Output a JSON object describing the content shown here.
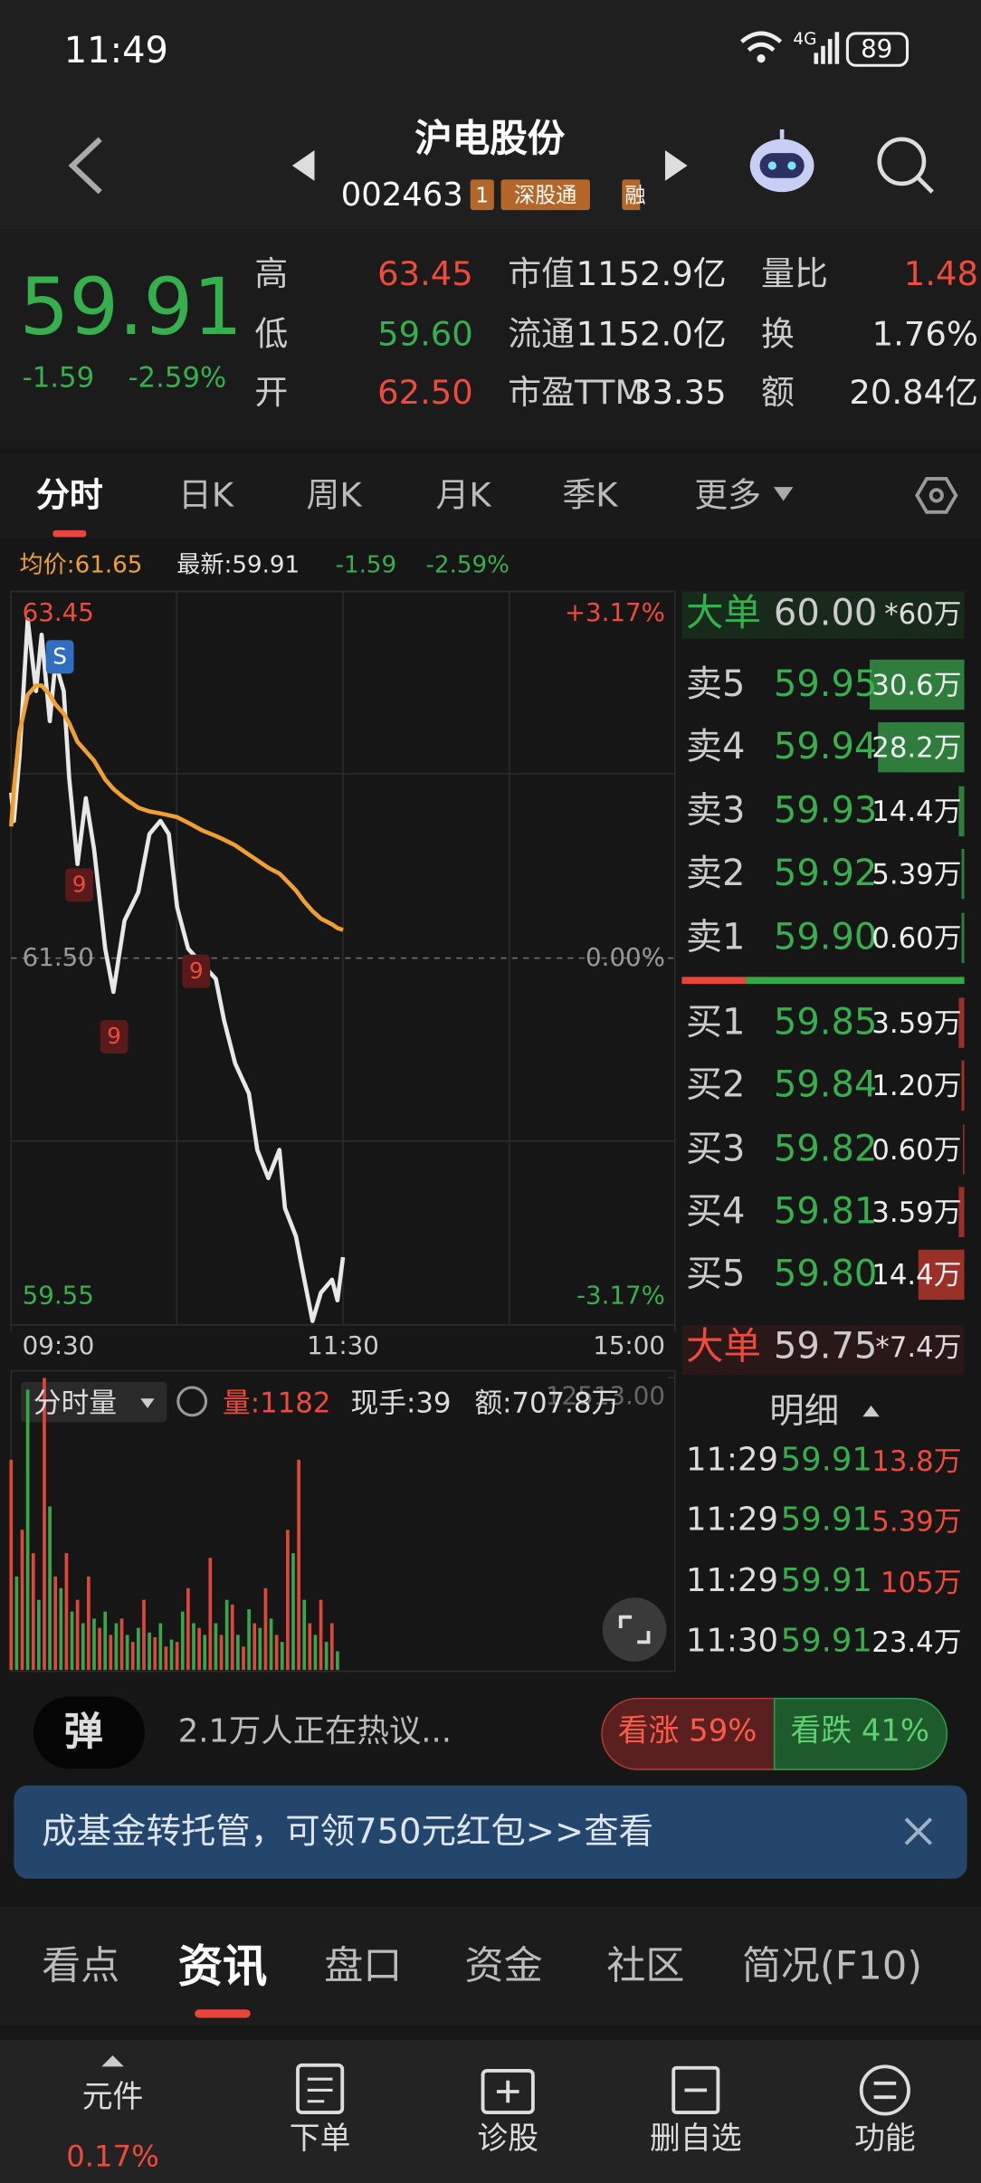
{
  "status_bar": {
    "time": "11:49",
    "network": "4G",
    "battery": "89"
  },
  "header": {
    "title": "沪电股份",
    "code": "002463",
    "badges": [
      "1",
      "深股通",
      "融"
    ]
  },
  "quote": {
    "price": "59.91",
    "change": "-1.59",
    "change_pct": "-2.59%",
    "stats": [
      [
        "高",
        "63.45"
      ],
      [
        "低",
        "59.60"
      ],
      [
        "开",
        "62.50"
      ],
      [
        "市值",
        "1152.9亿"
      ],
      [
        "流通",
        "1152.0亿"
      ],
      [
        "市盈TTM",
        "33.35"
      ],
      [
        "量比",
        "1.48"
      ],
      [
        "换",
        "1.76%"
      ],
      [
        "额",
        "20.84亿"
      ]
    ]
  },
  "chart_tabs": [
    "分时",
    "日K",
    "周K",
    "月K",
    "季K",
    "更多"
  ],
  "info_line": {
    "avg": "均价:61.65",
    "latest": "最新:59.91",
    "change": "-1.59",
    "change_pct": "-2.59%"
  },
  "chart_data": [
    {
      "type": "line",
      "xlim": [
        0,
        240
      ],
      "xticks": [
        {
          "value": 0,
          "label": "09:30"
        },
        {
          "value": 120,
          "label": "11:30"
        },
        {
          "value": 240,
          "label": "15:00"
        }
      ],
      "ylim": [
        59.55,
        63.45
      ],
      "yticks": [
        63.45,
        {
          "value": 61.5,
          "label": "61.50"
        },
        59.55
      ],
      "pct_labels": [
        "+3.17%",
        "0.00%",
        "-3.17%"
      ],
      "markers": [
        "S",
        "9",
        "9",
        "9"
      ],
      "x": [
        0,
        1,
        3,
        6,
        9,
        11,
        14,
        16,
        19,
        21,
        24,
        27,
        30,
        34,
        37,
        41,
        46,
        50,
        54,
        57,
        60,
        64,
        69,
        74,
        77,
        81,
        86,
        89,
        93,
        97,
        99,
        103,
        106,
        109,
        112,
        116,
        118,
        120
      ],
      "series": [
        {
          "color": "#e8e8e8",
          "values": [
            62.38,
            62.23,
            62.57,
            63.3,
            62.92,
            63.22,
            62.76,
            63.07,
            62.92,
            62.46,
            62.0,
            62.35,
            62.08,
            61.55,
            61.32,
            61.7,
            61.85,
            62.16,
            62.23,
            62.16,
            61.77,
            61.55,
            61.47,
            61.39,
            61.17,
            60.94,
            60.78,
            60.48,
            60.33,
            60.48,
            60.17,
            60.02,
            59.79,
            59.57,
            59.72,
            59.79,
            59.68,
            59.91
          ]
        },
        {
          "color": "#f0a030",
          "values": [
            62.2,
            62.4,
            62.7,
            62.9,
            62.95,
            62.95,
            62.9,
            62.85,
            62.8,
            62.75,
            62.65,
            62.6,
            62.55,
            62.45,
            62.4,
            62.35,
            62.3,
            62.28,
            62.27,
            62.26,
            62.25,
            62.22,
            62.18,
            62.15,
            62.13,
            62.1,
            62.05,
            62.02,
            61.98,
            61.95,
            61.92,
            61.86,
            61.8,
            61.75,
            61.71,
            61.68,
            61.66,
            61.65
          ]
        }
      ]
    },
    {
      "type": "bar",
      "title": "分时量",
      "volume": "量:1182",
      "hand": "现手:39",
      "amount": "额:707.8万",
      "ylim": [
        0,
        12513
      ],
      "yticks": [
        {
          "value": 12513,
          "label": "12513.00"
        }
      ],
      "series": [
        {
          "color": "#e0463a",
          "x": [
            0,
            4,
            8,
            12,
            16,
            20,
            24,
            28,
            32,
            36,
            40,
            44,
            48,
            52,
            56,
            60,
            64,
            68,
            72,
            76,
            80,
            84,
            88,
            92,
            96,
            100,
            104,
            108,
            112,
            116
          ],
          "values": [
            9000,
            6000,
            5000,
            12500,
            4000,
            5000,
            3000,
            4000,
            1800,
            1500,
            2200,
            1200,
            3000,
            1400,
            1000,
            1200,
            3500,
            1800,
            4800,
            1500,
            2800,
            1000,
            2000,
            3500,
            1500,
            6000,
            9000,
            2000,
            3000,
            2000
          ]
        },
        {
          "color": "#35a84a",
          "x": [
            2,
            6,
            10,
            14,
            18,
            22,
            26,
            30,
            34,
            38,
            42,
            46,
            50,
            54,
            58,
            62,
            66,
            70,
            74,
            78,
            82,
            86,
            90,
            94,
            98,
            102,
            106,
            110,
            114,
            118
          ],
          "values": [
            4000,
            12000,
            3000,
            7000,
            3500,
            2500,
            2000,
            2200,
            2500,
            2000,
            1500,
            1800,
            1600,
            2000,
            1300,
            2500,
            2000,
            1500,
            2000,
            3000,
            1500,
            2600,
            1800,
            2200,
            1200,
            5000,
            3000,
            1500,
            1200,
            800
          ]
        }
      ]
    }
  ],
  "order_book": {
    "big_top": [
      "大单",
      "60.00",
      "*60万"
    ],
    "asks": [
      [
        "卖5",
        "59.95",
        "30.6万"
      ],
      [
        "卖4",
        "59.94",
        "28.2万"
      ],
      [
        "卖3",
        "59.93",
        "14.4万"
      ],
      [
        "卖2",
        "59.92",
        "5.39万"
      ],
      [
        "卖1",
        "59.90",
        "0.60万"
      ]
    ],
    "bids": [
      [
        "买1",
        "59.85",
        "3.59万"
      ],
      [
        "买2",
        "59.84",
        "1.20万"
      ],
      [
        "买3",
        "59.82",
        "0.60万"
      ],
      [
        "买4",
        "59.81",
        "3.59万"
      ],
      [
        "买5",
        "59.80",
        "14.4万"
      ]
    ],
    "big_bottom": [
      "大单",
      "59.75",
      "*7.4万"
    ]
  },
  "trades": {
    "title": "明细",
    "rows": [
      [
        "11:29",
        "59.91",
        "13.8万"
      ],
      [
        "11:29",
        "59.91",
        "5.39万"
      ],
      [
        "11:29",
        "59.91",
        "105万"
      ],
      [
        "11:30",
        "59.91",
        "23.4万"
      ]
    ]
  },
  "discussion": {
    "icon": "弹",
    "text": "2.1万人正在热议...",
    "bull": "看涨 59%",
    "bear": "看跌 41%"
  },
  "banner": {
    "text": "成基金转托管，可领750元红包>>查看"
  },
  "content_tabs": [
    "看点",
    "资讯",
    "盘口",
    "资金",
    "社区",
    "简况(F10)"
  ],
  "bottom_nav": [
    {
      "label": "元件",
      "value": "0.17%"
    },
    {
      "label": "下单"
    },
    {
      "label": "诊股"
    },
    {
      "label": "删自选"
    },
    {
      "label": "功能"
    }
  ]
}
